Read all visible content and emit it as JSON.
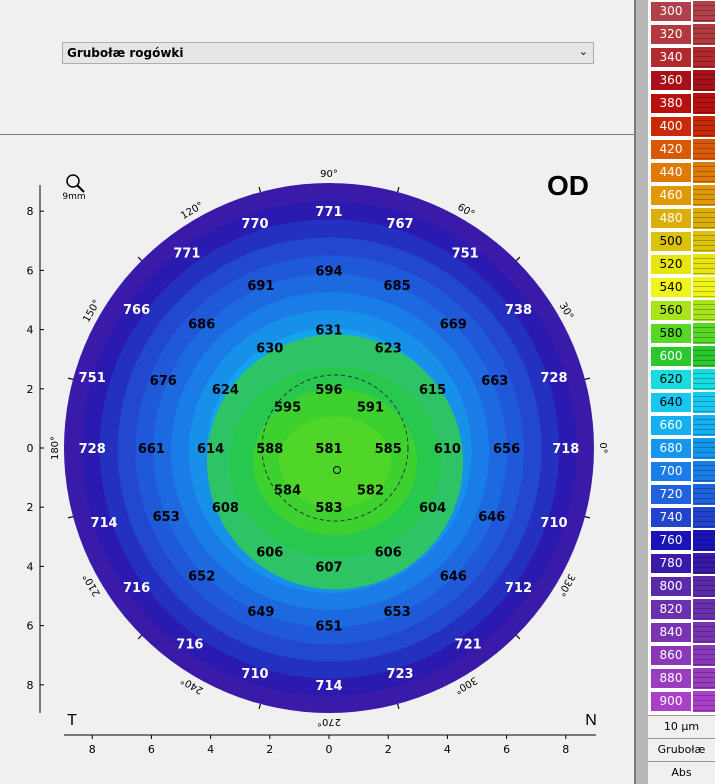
{
  "map_select": {
    "value": "Grubołæ rogówki"
  },
  "map": {
    "eye": "OD",
    "zoom_label": "9mm",
    "side_left": "T",
    "side_right": "N",
    "angles": [
      {
        "t": "90°",
        "deg": 90
      },
      {
        "t": "60°",
        "deg": 60
      },
      {
        "t": "30°",
        "deg": 30
      },
      {
        "t": "0°",
        "deg": 0
      },
      {
        "t": "330°",
        "deg": -30
      },
      {
        "t": "300°",
        "deg": -60
      },
      {
        "t": "270°",
        "deg": -90
      },
      {
        "t": "240°",
        "deg": -120
      },
      {
        "t": "210°",
        "deg": -150
      },
      {
        "t": "180°",
        "deg": 180
      },
      {
        "t": "150°",
        "deg": 150
      },
      {
        "t": "120°",
        "deg": 120
      }
    ],
    "y_ticks": [
      "8",
      "6",
      "4",
      "2",
      "0",
      "2",
      "4",
      "6",
      "8"
    ],
    "x_ticks": [
      "8",
      "6",
      "4",
      "2",
      "0",
      "2",
      "4",
      "6",
      "8"
    ],
    "values": [
      {
        "v": "771",
        "x": 0,
        "y": 8
      },
      {
        "v": "770",
        "x": -2.5,
        "y": 7.6
      },
      {
        "v": "767",
        "x": 2.4,
        "y": 7.6
      },
      {
        "v": "771",
        "x": -4.8,
        "y": 6.6
      },
      {
        "v": "751",
        "x": 4.6,
        "y": 6.6
      },
      {
        "v": "694",
        "x": 0,
        "y": 6
      },
      {
        "v": "691",
        "x": -2.3,
        "y": 5.5
      },
      {
        "v": "685",
        "x": 2.3,
        "y": 5.5
      },
      {
        "v": "766",
        "x": -6.5,
        "y": 4.7
      },
      {
        "v": "738",
        "x": 6.4,
        "y": 4.7
      },
      {
        "v": "686",
        "x": -4.3,
        "y": 4.2
      },
      {
        "v": "669",
        "x": 4.2,
        "y": 4.2
      },
      {
        "v": "631",
        "x": 0,
        "y": 4
      },
      {
        "v": "630",
        "x": -2,
        "y": 3.4
      },
      {
        "v": "623",
        "x": 2,
        "y": 3.4
      },
      {
        "v": "751",
        "x": -8,
        "y": 2.4
      },
      {
        "v": "728",
        "x": 7.6,
        "y": 2.4
      },
      {
        "v": "676",
        "x": -5.6,
        "y": 2.3
      },
      {
        "v": "663",
        "x": 5.6,
        "y": 2.3
      },
      {
        "v": "624",
        "x": -3.5,
        "y": 2
      },
      {
        "v": "615",
        "x": 3.5,
        "y": 2
      },
      {
        "v": "596",
        "x": 0,
        "y": 2
      },
      {
        "v": "595",
        "x": -1.4,
        "y": 1.4
      },
      {
        "v": "591",
        "x": 1.4,
        "y": 1.4
      },
      {
        "v": "728",
        "x": -8,
        "y": 0
      },
      {
        "v": "661",
        "x": -6,
        "y": 0
      },
      {
        "v": "614",
        "x": -4,
        "y": 0
      },
      {
        "v": "588",
        "x": -2,
        "y": 0
      },
      {
        "v": "581",
        "x": 0,
        "y": 0
      },
      {
        "v": "585",
        "x": 2,
        "y": 0
      },
      {
        "v": "610",
        "x": 4,
        "y": 0
      },
      {
        "v": "656",
        "x": 6,
        "y": 0
      },
      {
        "v": "718",
        "x": 8,
        "y": 0
      },
      {
        "v": "584",
        "x": -1.4,
        "y": -1.4
      },
      {
        "v": "582",
        "x": 1.4,
        "y": -1.4
      },
      {
        "v": "583",
        "x": 0,
        "y": -2
      },
      {
        "v": "714",
        "x": -7.6,
        "y": -2.5
      },
      {
        "v": "653",
        "x": -5.5,
        "y": -2.3
      },
      {
        "v": "608",
        "x": -3.5,
        "y": -2
      },
      {
        "v": "604",
        "x": 3.5,
        "y": -2
      },
      {
        "v": "646",
        "x": 5.5,
        "y": -2.3
      },
      {
        "v": "710",
        "x": 7.6,
        "y": -2.5
      },
      {
        "v": "606",
        "x": -2,
        "y": -3.5
      },
      {
        "v": "606",
        "x": 2,
        "y": -3.5
      },
      {
        "v": "607",
        "x": 0,
        "y": -4
      },
      {
        "v": "652",
        "x": -4.3,
        "y": -4.3
      },
      {
        "v": "646",
        "x": 4.2,
        "y": -4.3
      },
      {
        "v": "716",
        "x": -6.5,
        "y": -4.7
      },
      {
        "v": "712",
        "x": 6.4,
        "y": -4.7
      },
      {
        "v": "649",
        "x": -2.3,
        "y": -5.5
      },
      {
        "v": "653",
        "x": 2.3,
        "y": -5.5
      },
      {
        "v": "651",
        "x": 0,
        "y": -6
      },
      {
        "v": "716",
        "x": -4.7,
        "y": -6.6
      },
      {
        "v": "721",
        "x": 4.7,
        "y": -6.6
      },
      {
        "v": "710",
        "x": -2.5,
        "y": -7.6
      },
      {
        "v": "723",
        "x": 2.4,
        "y": -7.6
      },
      {
        "v": "714",
        "x": 0,
        "y": -8
      }
    ],
    "zones": [
      {
        "min": 600,
        "color": "#2fbf62"
      },
      {
        "min": 580,
        "color": "#29c45a"
      },
      {
        "min": 570,
        "color": "#44d32a"
      }
    ]
  },
  "scale": {
    "items": [
      {
        "v": "300",
        "c": "#b0414a"
      },
      {
        "v": "320",
        "c": "#b23a3f"
      },
      {
        "v": "340",
        "c": "#b02a2e"
      },
      {
        "v": "360",
        "c": "#a8101a"
      },
      {
        "v": "380",
        "c": "#b8100e"
      },
      {
        "v": "400",
        "c": "#c82a08"
      },
      {
        "v": "420",
        "c": "#d85a06"
      },
      {
        "v": "440",
        "c": "#e07a06"
      },
      {
        "v": "460",
        "c": "#e09808"
      },
      {
        "v": "480",
        "c": "#dcae08"
      },
      {
        "v": "500",
        "c": "#dcc20c"
      },
      {
        "v": "520",
        "c": "#e8e410"
      },
      {
        "v": "540",
        "c": "#f0f418"
      },
      {
        "v": "560",
        "c": "#a8e41a"
      },
      {
        "v": "580",
        "c": "#56d824"
      },
      {
        "v": "600",
        "c": "#2ac82c"
      },
      {
        "v": "620",
        "c": "#18dce0"
      },
      {
        "v": "640",
        "c": "#16c8f0"
      },
      {
        "v": "660",
        "c": "#14b0f0"
      },
      {
        "v": "680",
        "c": "#1496ec"
      },
      {
        "v": "700",
        "c": "#1a7ce6"
      },
      {
        "v": "720",
        "c": "#1e62de"
      },
      {
        "v": "740",
        "c": "#2244cc"
      },
      {
        "v": "760",
        "c": "#1a14b8"
      },
      {
        "v": "780",
        "c": "#3a1aa8"
      },
      {
        "v": "800",
        "c": "#5a2aa8"
      },
      {
        "v": "820",
        "c": "#6a30ae"
      },
      {
        "v": "840",
        "c": "#7a34b2"
      },
      {
        "v": "860",
        "c": "#8a38b8"
      },
      {
        "v": "880",
        "c": "#9a3cbe"
      },
      {
        "v": "900",
        "c": "#aa40c8"
      }
    ],
    "step": "10 µm",
    "type": "Grubołæ",
    "mode": "Abs"
  }
}
